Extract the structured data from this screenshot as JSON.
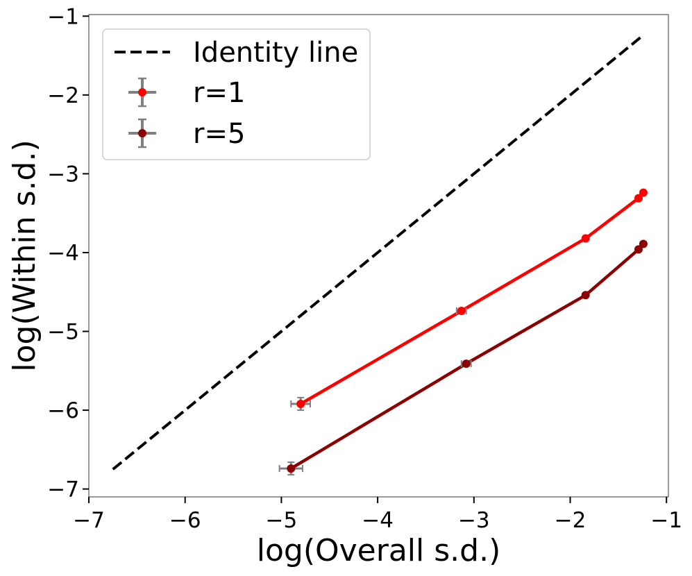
{
  "chart_data": {
    "type": "line",
    "xlabel": "log(Overall s.d.)",
    "ylabel": "log(Within s.d.)",
    "xlim": [
      -7.0,
      -0.98
    ],
    "ylim": [
      -7.1,
      -0.98
    ],
    "x_ticks": [
      -7,
      -6,
      -5,
      -4,
      -3,
      -2,
      -1
    ],
    "y_ticks": [
      -7,
      -6,
      -5,
      -4,
      -3,
      -2,
      -1
    ],
    "x_tick_labels": [
      "−7",
      "−6",
      "−5",
      "−4",
      "−3",
      "−2",
      "−1"
    ],
    "y_tick_labels": [
      "−7",
      "−6",
      "−5",
      "−4",
      "−3",
      "−2",
      "−1"
    ],
    "grid": false,
    "legend_position": "top-left",
    "identity_line": {
      "name": "Identity line",
      "x": [
        -6.75,
        -1.25
      ],
      "y": [
        -6.75,
        -1.25
      ],
      "color": "#000000",
      "style": "dashed"
    },
    "series": [
      {
        "name": "r=1",
        "color": "#ff0000",
        "x": [
          -4.8,
          -3.13,
          -1.84,
          -1.29,
          -1.24
        ],
        "y": [
          -5.92,
          -4.74,
          -3.82,
          -3.31,
          -3.24
        ],
        "x_err": [
          0.1,
          0.05,
          0.0,
          0.0,
          0.0
        ],
        "y_err": [
          0.08,
          0.03,
          0.0,
          0.0,
          0.0
        ]
      },
      {
        "name": "r=5",
        "color": "#8b0000",
        "x": [
          -4.9,
          -3.08,
          -1.84,
          -1.29,
          -1.24
        ],
        "y": [
          -6.74,
          -5.41,
          -4.54,
          -3.96,
          -3.89
        ],
        "x_err": [
          0.12,
          0.05,
          0.0,
          0.0,
          0.0
        ],
        "y_err": [
          0.08,
          0.03,
          0.0,
          0.0,
          0.0
        ]
      }
    ],
    "errorbar_color": "#808080"
  }
}
